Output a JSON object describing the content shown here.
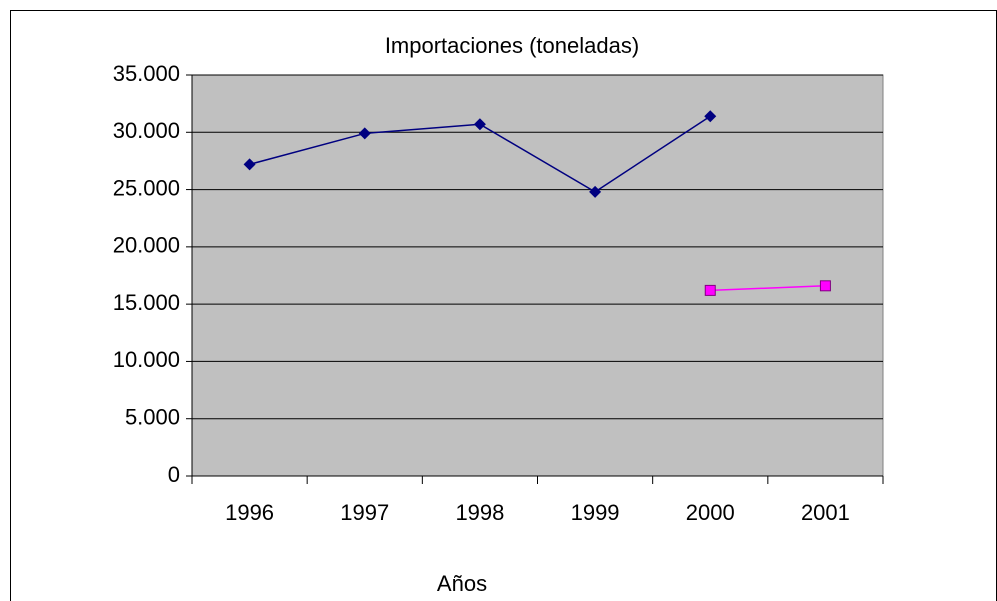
{
  "chart_data": {
    "type": "line",
    "title": "Importaciones (toneladas)",
    "x_label": "Años",
    "categories": [
      "1996",
      "1997",
      "1998",
      "1999",
      "2000",
      "2001"
    ],
    "series": [
      {
        "color": "#000080",
        "marker": "diamond",
        "values": [
          27200,
          29900,
          30700,
          24800,
          31400,
          null
        ]
      },
      {
        "color": "#ff00ff",
        "marker": "square",
        "values": [
          null,
          null,
          null,
          null,
          16200,
          16600
        ]
      }
    ],
    "ylim": [
      0,
      35000
    ],
    "yticks": [
      0,
      {
        "value": 5000,
        "label": "5.000"
      },
      {
        "value": 10000,
        "label": "10.000"
      },
      {
        "value": 15000,
        "label": "15.000"
      },
      {
        "value": 20000,
        "label": "20.000"
      },
      {
        "value": 25000,
        "label": "25.000"
      },
      {
        "value": 30000,
        "label": "30.000"
      },
      {
        "value": 35000,
        "label": "35.000"
      }
    ],
    "grid": true,
    "plot_background": "#c0c0c0"
  }
}
